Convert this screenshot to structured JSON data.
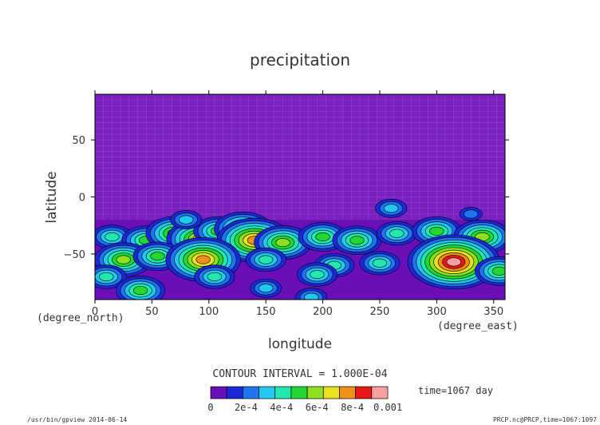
{
  "chart_data": {
    "type": "heatmap",
    "title": "precipitation",
    "xlabel": "longitude",
    "ylabel": "latitude",
    "x_unit": "(degree_east)",
    "y_unit": "(degree_north)",
    "xlim": [
      0,
      360
    ],
    "ylim": [
      -90,
      90
    ],
    "x_ticks": [
      0,
      50,
      100,
      150,
      200,
      250,
      300,
      350
    ],
    "y_ticks": [
      50,
      0,
      -50
    ],
    "x_tick_labels": [
      "0",
      "50",
      "100",
      "150",
      "200",
      "250",
      "300",
      "350"
    ],
    "y_tick_labels": [
      "50",
      "0",
      "−50"
    ],
    "grid": true,
    "contour_interval_text": "CONTOUR INTERVAL = 1.000E-04",
    "time_label": "time=1067 day",
    "colorbar": {
      "levels": [
        0,
        0.0001,
        0.0002,
        0.0003,
        0.0004,
        0.0005,
        0.0006,
        0.0007,
        0.0008,
        0.0009,
        0.001
      ],
      "tick_labels": [
        "0",
        "2e-4",
        "4e-4",
        "6e-4",
        "8e-4",
        "0.001"
      ],
      "colors": [
        "#6a0fb8",
        "#1a28d8",
        "#1f74f0",
        "#22c8f0",
        "#22e8b0",
        "#22d830",
        "#8ee020",
        "#e8e020",
        "#f09018",
        "#e81818",
        "#f8a0a0"
      ]
    },
    "background_color": "#7a1fc0",
    "features": [
      {
        "lon": 15,
        "lat": -35,
        "level": 0.0004
      },
      {
        "lon": 45,
        "lat": -38,
        "level": 0.0005
      },
      {
        "lon": 70,
        "lat": -32,
        "level": 0.0006
      },
      {
        "lon": 92,
        "lat": -37,
        "level": 0.0007
      },
      {
        "lon": 108,
        "lat": -30,
        "level": 0.0005
      },
      {
        "lon": 130,
        "lat": -28,
        "level": 0.0006
      },
      {
        "lon": 140,
        "lat": -38,
        "level": 0.0008
      },
      {
        "lon": 165,
        "lat": -40,
        "level": 0.0006
      },
      {
        "lon": 200,
        "lat": -35,
        "level": 0.0005
      },
      {
        "lon": 230,
        "lat": -38,
        "level": 0.0005
      },
      {
        "lon": 265,
        "lat": -32,
        "level": 0.0004
      },
      {
        "lon": 300,
        "lat": -30,
        "level": 0.0005
      },
      {
        "lon": 340,
        "lat": -35,
        "level": 0.0006
      },
      {
        "lon": 25,
        "lat": -55,
        "level": 0.0006
      },
      {
        "lon": 55,
        "lat": -52,
        "level": 0.0005
      },
      {
        "lon": 95,
        "lat": -55,
        "level": 0.0008
      },
      {
        "lon": 150,
        "lat": -55,
        "level": 0.0004
      },
      {
        "lon": 210,
        "lat": -60,
        "level": 0.0004
      },
      {
        "lon": 250,
        "lat": -58,
        "level": 0.0004
      },
      {
        "lon": 315,
        "lat": -57,
        "level": 0.001
      },
      {
        "lon": 355,
        "lat": -65,
        "level": 0.0005
      },
      {
        "lon": 10,
        "lat": -70,
        "level": 0.0004
      },
      {
        "lon": 105,
        "lat": -70,
        "level": 0.0004
      },
      {
        "lon": 195,
        "lat": -68,
        "level": 0.0004
      },
      {
        "lon": 40,
        "lat": -82,
        "level": 0.0005
      },
      {
        "lon": 150,
        "lat": -80,
        "level": 0.0003
      },
      {
        "lon": 190,
        "lat": -88,
        "level": 0.0003
      },
      {
        "lon": 260,
        "lat": -10,
        "level": 0.0003
      },
      {
        "lon": 80,
        "lat": -20,
        "level": 0.0003
      },
      {
        "lon": 330,
        "lat": -15,
        "level": 0.0002
      }
    ]
  },
  "footer": {
    "left": "/usr/bin/gpview  2014-06-14",
    "right": "PRCP.nc@PRCP,time=1067:1097"
  }
}
